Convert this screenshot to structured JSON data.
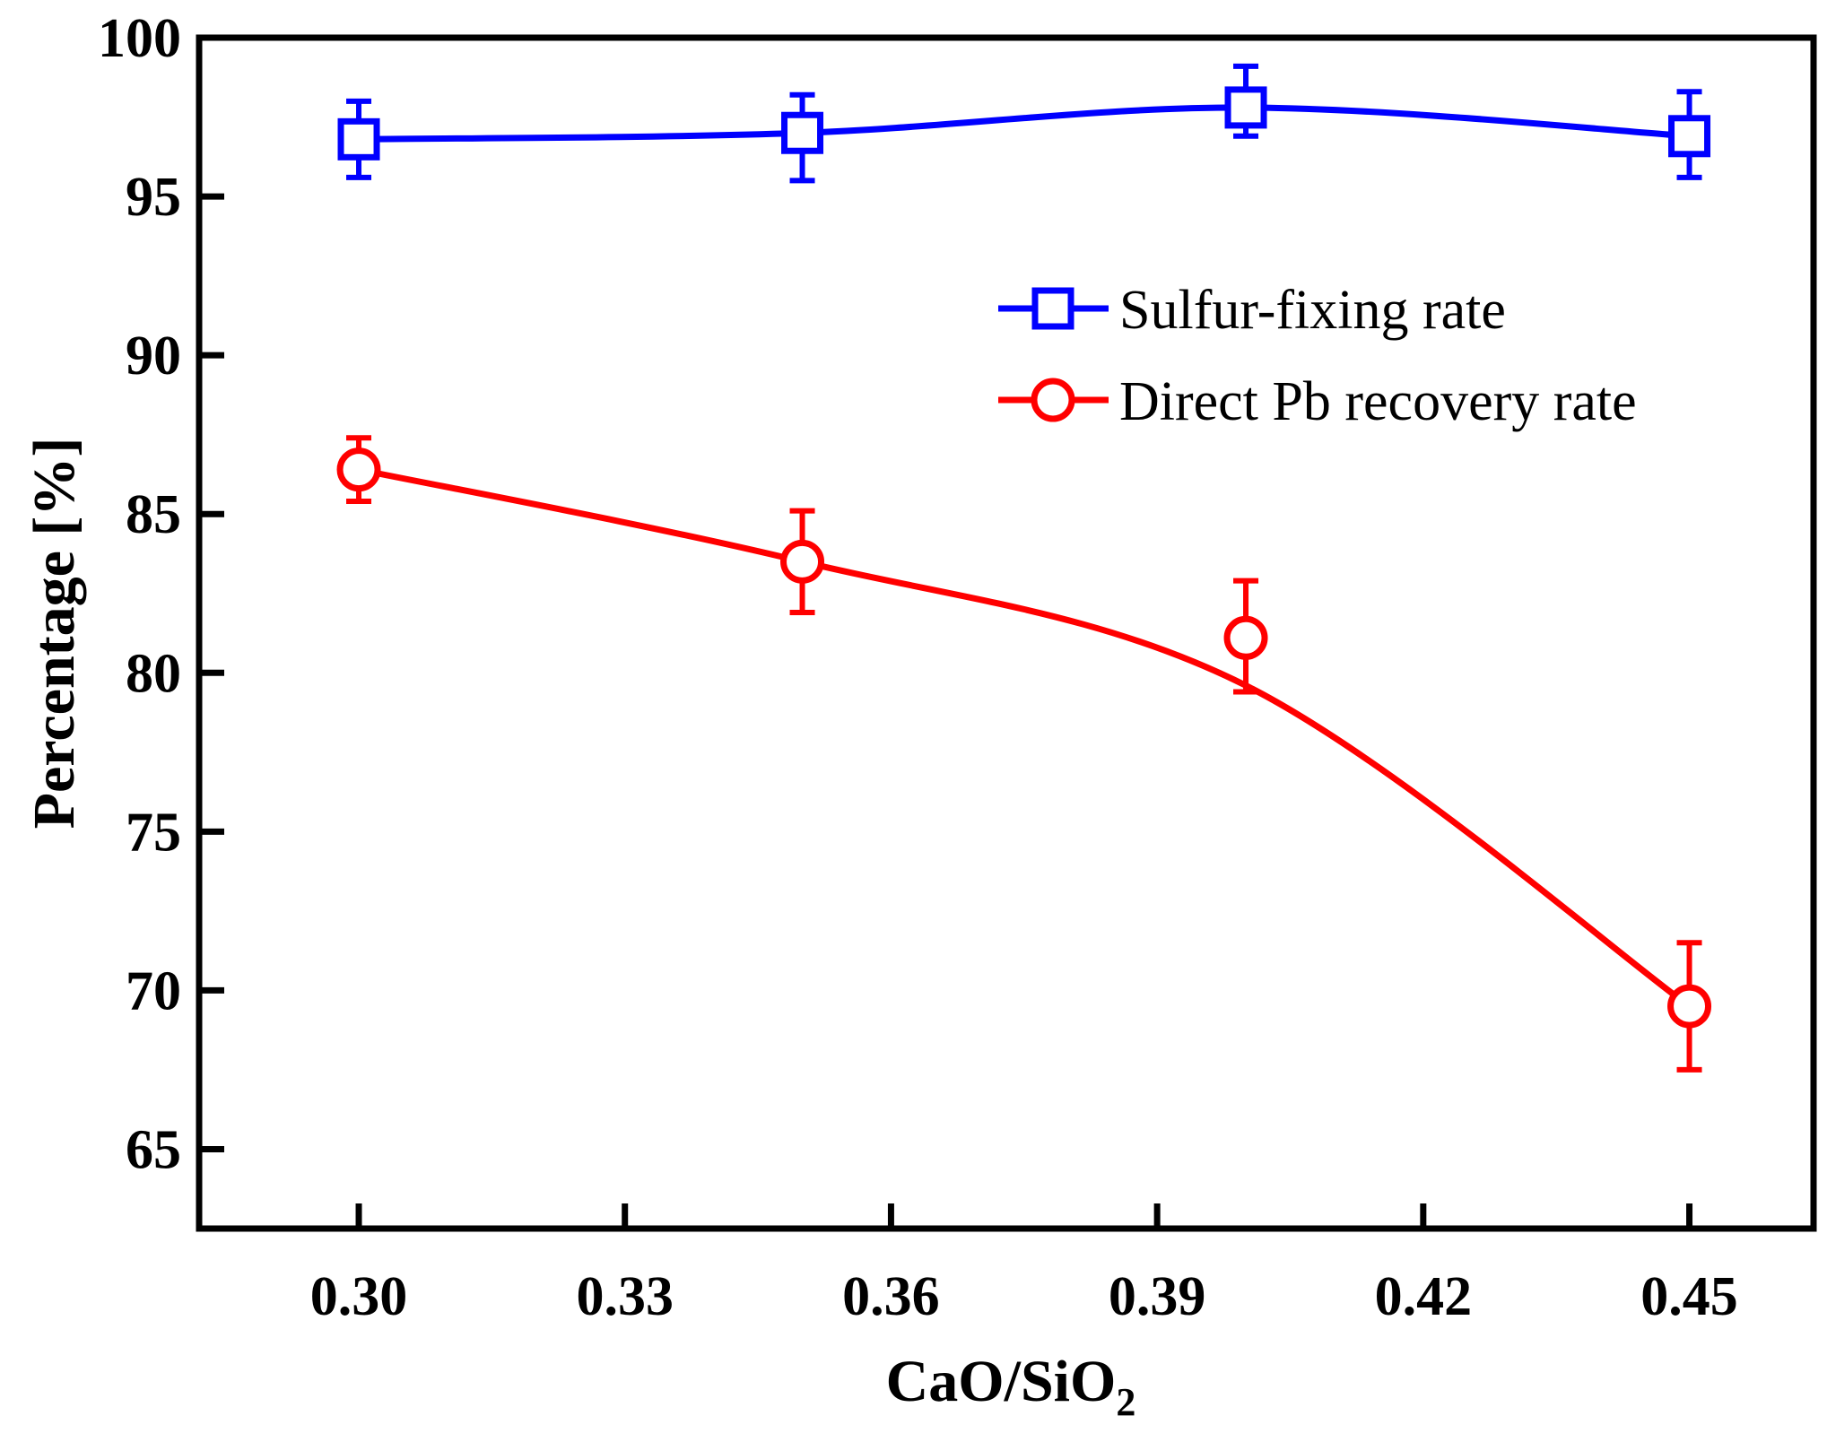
{
  "chart_data": {
    "type": "line",
    "title": "",
    "xlabel": {
      "main": "CaO/SiO",
      "subscript": "2"
    },
    "ylabel": "Percentage [%]",
    "xlim": [
      0.282,
      0.464
    ],
    "ylim": [
      62.5,
      100
    ],
    "x_ticks": [
      0.3,
      0.33,
      0.36,
      0.39,
      0.42,
      0.45
    ],
    "x_tick_labels": [
      "0.30",
      "0.33",
      "0.36",
      "0.39",
      "0.42",
      "0.45"
    ],
    "y_ticks": [
      65,
      70,
      75,
      80,
      85,
      90,
      95,
      100
    ],
    "y_tick_labels": [
      "65",
      "70",
      "75",
      "80",
      "85",
      "90",
      "95",
      "100"
    ],
    "x": [
      0.3,
      0.35,
      0.4,
      0.45
    ],
    "grid": false,
    "legend_position": "upper-right",
    "series": [
      {
        "name": "Sulfur-fixing rate",
        "color": "#0000ff",
        "marker": "square",
        "values": [
          96.8,
          97.0,
          97.8,
          96.9
        ],
        "err_upper": [
          1.2,
          1.2,
          1.3,
          1.4
        ],
        "err_lower": [
          1.2,
          1.5,
          0.9,
          1.3
        ]
      },
      {
        "name": "Direct Pb recovery rate",
        "color": "#ff0000",
        "marker": "circle",
        "values": [
          86.4,
          83.5,
          81.1,
          69.5
        ],
        "err_upper": [
          1.0,
          1.6,
          1.8,
          2.0
        ],
        "err_lower": [
          1.0,
          1.6,
          1.7,
          2.0
        ],
        "fit_curve": [
          [
            0.3,
            86.4
          ],
          [
            0.35,
            83.5
          ],
          [
            0.4,
            79.6
          ],
          [
            0.45,
            69.5
          ]
        ]
      }
    ]
  }
}
